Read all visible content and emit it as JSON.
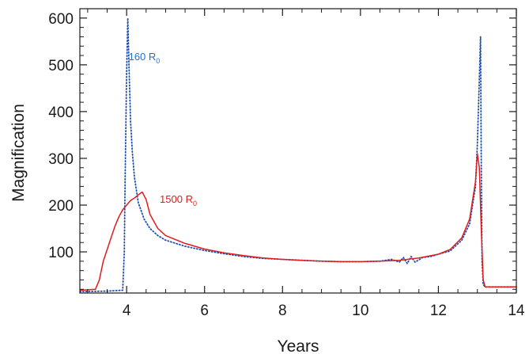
{
  "chart_data": {
    "type": "line",
    "title": "",
    "xlabel": "Years",
    "ylabel": "Magnification",
    "xlim": [
      2.8,
      14
    ],
    "ylim": [
      12,
      620
    ],
    "x_ticks": [
      4,
      6,
      8,
      10,
      12,
      14
    ],
    "x_tick_labels": [
      "4",
      "6",
      "8",
      "10",
      "12",
      "14"
    ],
    "y_ticks": [
      100,
      200,
      300,
      400,
      500,
      600
    ],
    "y_tick_labels": [
      "100",
      "200",
      "300",
      "400",
      "500",
      "600"
    ],
    "grid": false,
    "legend": "none",
    "annotations": [
      {
        "text": "160 R",
        "sub": "0",
        "color": "#1f6fd0",
        "x": 4.05,
        "y": 510
      },
      {
        "text": "1500 R",
        "sub": "0",
        "color": "#e01c1c",
        "x": 4.85,
        "y": 205
      }
    ],
    "series": [
      {
        "style": "dotted",
        "color": "#1f4fb0",
        "x": [
          2.8,
          3.5,
          3.9,
          3.94,
          3.96,
          4.0,
          4.03,
          4.06,
          4.1,
          4.15,
          4.2,
          4.3,
          4.45,
          4.6,
          4.8,
          5.0,
          5.5,
          6.0,
          6.5,
          7.0,
          7.5,
          8.0,
          8.5,
          9.0,
          9.5,
          10.0,
          10.5,
          10.8,
          11.0,
          11.1,
          11.2,
          11.3,
          11.4,
          11.6,
          11.8,
          12.0,
          12.3,
          12.6,
          12.8,
          12.95,
          13.0,
          13.05,
          13.08,
          13.1,
          13.12,
          13.15,
          13.2,
          13.3,
          14.0
        ],
        "y": [
          15,
          16,
          18,
          100,
          250,
          480,
          600,
          500,
          380,
          310,
          260,
          205,
          170,
          150,
          135,
          125,
          112,
          103,
          96,
          90,
          86,
          84,
          82,
          80,
          79,
          79,
          80,
          84,
          78,
          88,
          75,
          90,
          78,
          88,
          90,
          95,
          102,
          125,
          160,
          240,
          330,
          470,
          560,
          300,
          80,
          30,
          25,
          25,
          25
        ]
      },
      {
        "style": "solid",
        "color": "#e01c1c",
        "x": [
          2.8,
          3.2,
          3.3,
          3.4,
          3.5,
          3.6,
          3.7,
          3.8,
          3.9,
          4.0,
          4.1,
          4.2,
          4.3,
          4.4,
          4.5,
          4.6,
          4.8,
          5.0,
          5.5,
          6.0,
          6.5,
          7.0,
          7.5,
          8.0,
          8.5,
          9.0,
          9.5,
          10.0,
          10.5,
          11.0,
          11.5,
          12.0,
          12.3,
          12.6,
          12.8,
          12.95,
          13.0,
          13.05,
          13.1,
          13.15,
          13.2,
          13.3,
          14.0
        ],
        "y": [
          18,
          20,
          40,
          80,
          105,
          130,
          155,
          175,
          190,
          200,
          210,
          215,
          222,
          228,
          212,
          180,
          150,
          135,
          118,
          106,
          98,
          92,
          87,
          84,
          82,
          80,
          79,
          79,
          80,
          82,
          87,
          95,
          105,
          130,
          170,
          250,
          310,
          280,
          150,
          40,
          25,
          25,
          25
        ]
      }
    ]
  }
}
